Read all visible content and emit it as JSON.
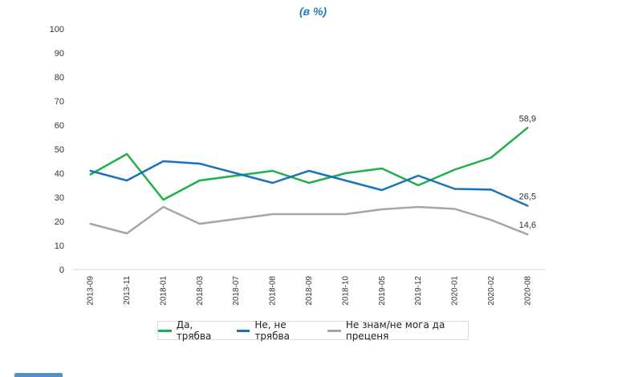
{
  "chart_data": {
    "type": "line",
    "subtitle": "(в %)",
    "categories": [
      "2013-09",
      "2013-11",
      "2018-01",
      "2018-03",
      "2018-07",
      "2018-08",
      "2018-09",
      "2018-10",
      "2019-05",
      "2019-12",
      "2020-01",
      "2020-02",
      "2020-08"
    ],
    "ylim": [
      0,
      100
    ],
    "yticks": [
      0,
      10,
      20,
      30,
      40,
      50,
      60,
      70,
      80,
      90,
      100
    ],
    "grid": false,
    "legend_position": "bottom",
    "series": [
      {
        "name": "Да, трябва",
        "color": "#1fb04c",
        "values": [
          39.5,
          48,
          29,
          37,
          39,
          41,
          36,
          40,
          42,
          35,
          41.5,
          46.5,
          58.9
        ],
        "end_label": "58,9"
      },
      {
        "name": "Не, не трябва",
        "color": "#1a72bd",
        "values": [
          41,
          37,
          45,
          44,
          40,
          36,
          41,
          37,
          33,
          39,
          33.5,
          33.2,
          26.5
        ],
        "end_label": "26,5"
      },
      {
        "name": "Не знам/не мога да преценя",
        "color": "#a6a6a6",
        "values": [
          19,
          15,
          26,
          19,
          21,
          23,
          23,
          23,
          25,
          26,
          25.2,
          20.6,
          14.6
        ],
        "end_label": "14,6"
      }
    ]
  }
}
